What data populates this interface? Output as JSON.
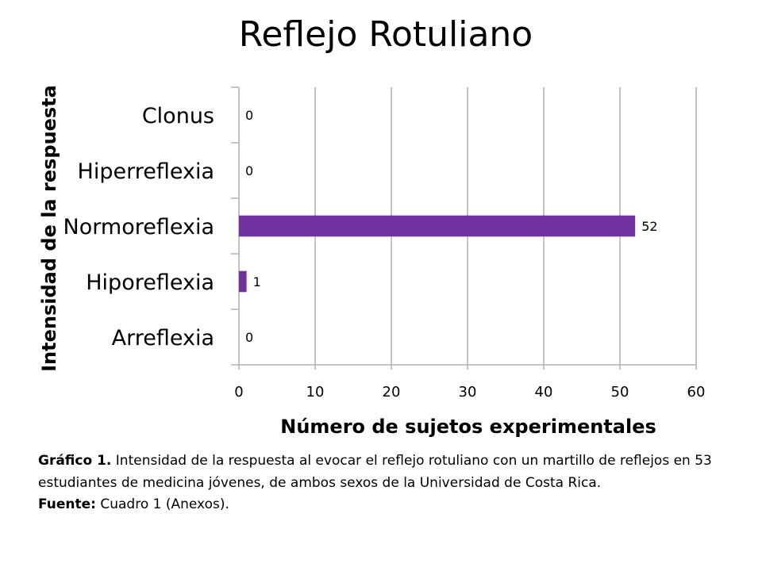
{
  "title": "Reflejo Rotuliano",
  "chart_data": {
    "type": "bar",
    "orientation": "horizontal",
    "categories": [
      "Arreflexia",
      "Hiporeflexia",
      "Normoreflexia",
      "Hiperreflexia",
      "Clonus"
    ],
    "values": [
      0,
      1,
      52,
      0,
      0
    ],
    "xlabel": "Número de sujetos experimentales",
    "ylabel": "Intensidad de la respuesta",
    "xlim": [
      0,
      60
    ],
    "xticks": [
      "0",
      "10",
      "20",
      "30",
      "40",
      "50",
      "60"
    ],
    "grid": "vertical",
    "legend": "none",
    "data_labels": true,
    "bar_color": "#7030a0",
    "grid_color": "#b0b0b0"
  },
  "caption": {
    "label": "Gráfico 1.",
    "text": " Intensidad de la respuesta al evocar el reflejo rotuliano con un martillo de reflejos en 53 estudiantes de medicina jóvenes, de ambos sexos de la Universidad de Costa Rica.",
    "source_label": "Fuente:",
    "source_text": " Cuadro 1 (Anexos)."
  }
}
